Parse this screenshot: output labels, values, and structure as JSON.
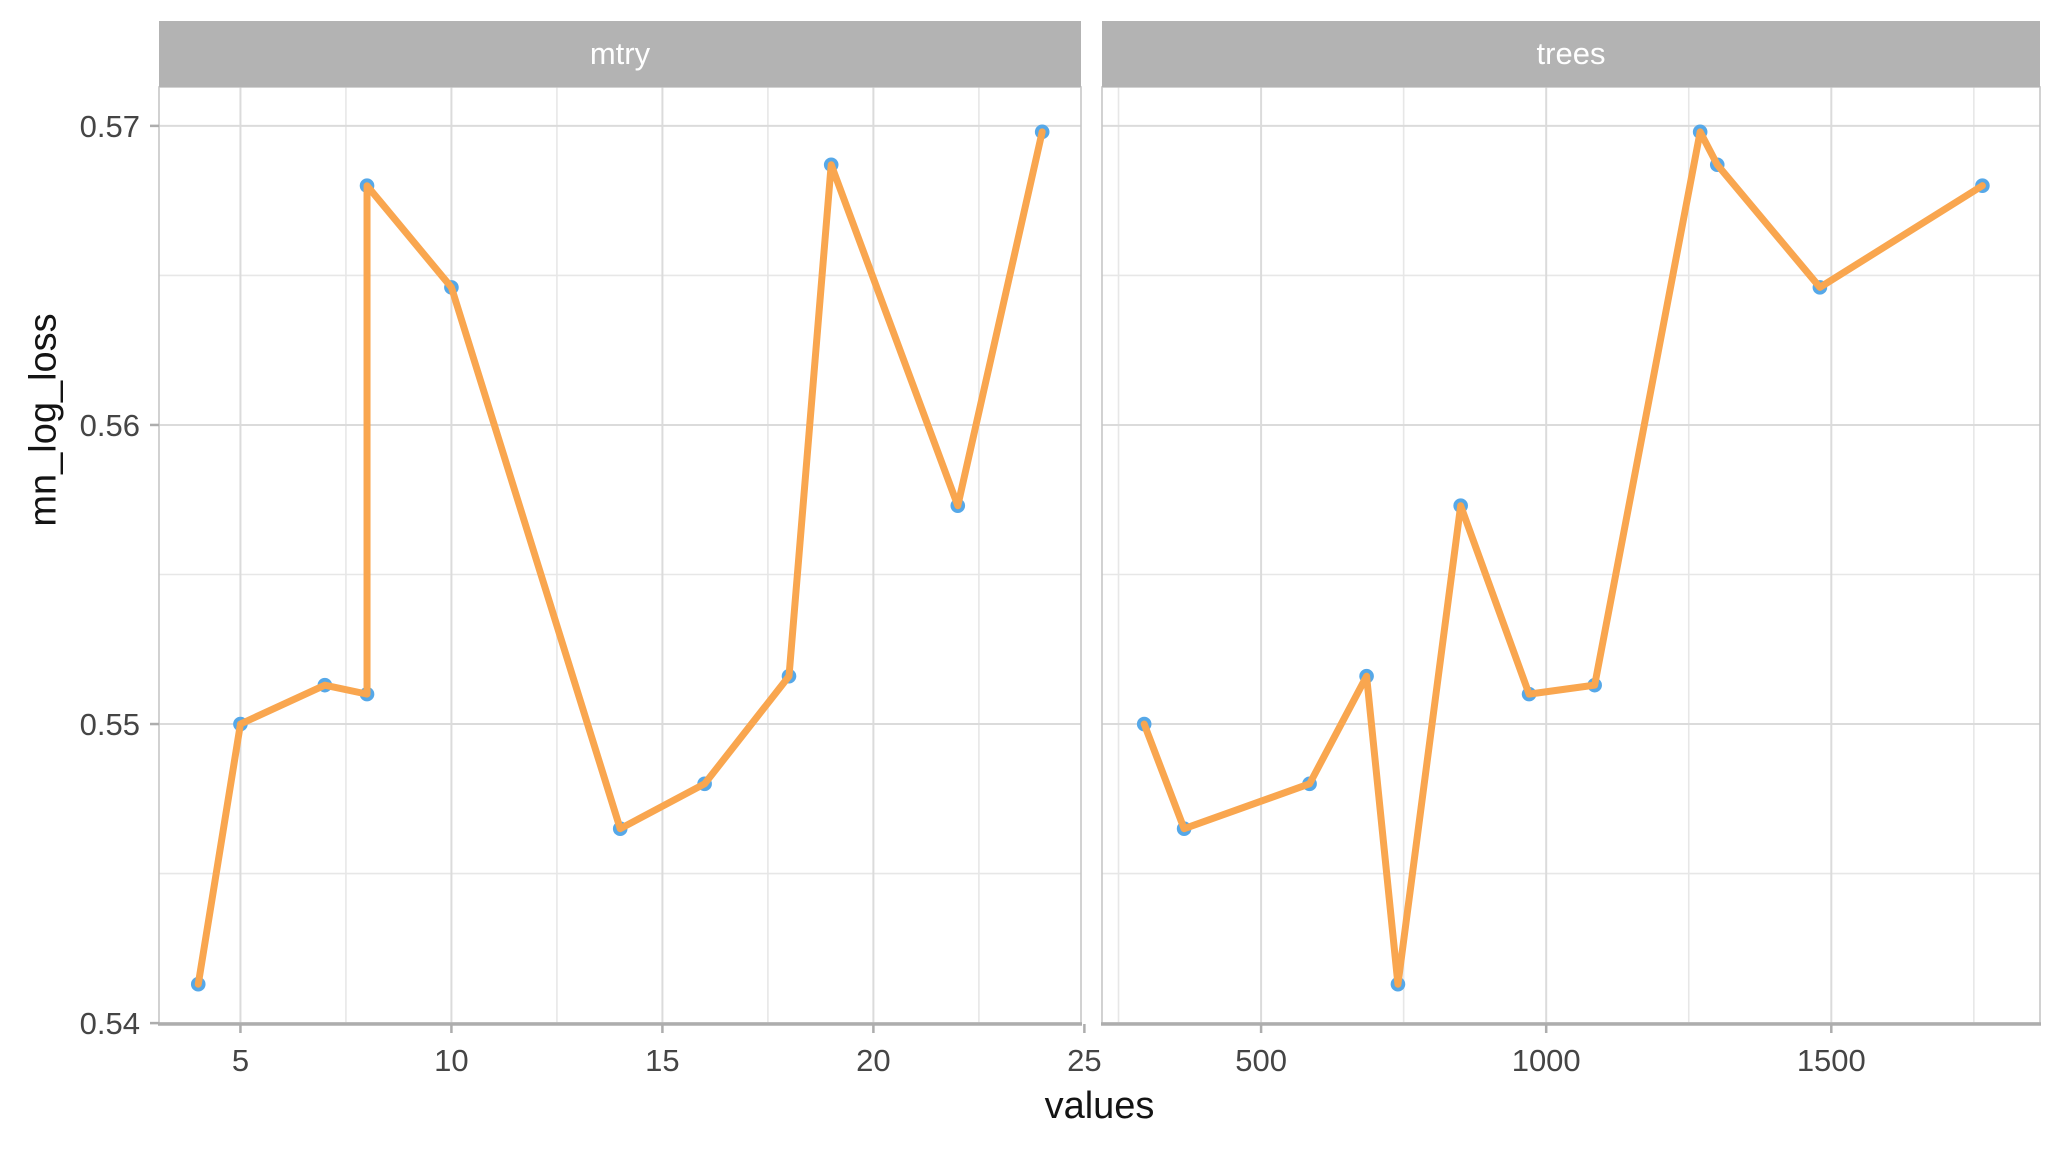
{
  "chart": {
    "xlabel": "values",
    "ylabel": "mn_log_loss"
  },
  "chart_data": {
    "type": "line",
    "description": "Faceted line+point plot of mn_log_loss versus hyperparameter values for two tuning parameters (mtry, trees)",
    "xlabel": "values",
    "ylabel": "mn_log_loss",
    "legend": "none",
    "grid": true,
    "y_domain": [
      0.53997,
      0.5713
    ],
    "y_major_ticks": [
      {
        "v": 0.54,
        "label": "0.54"
      },
      {
        "v": 0.55,
        "label": "0.55"
      },
      {
        "v": 0.56,
        "label": "0.56"
      },
      {
        "v": 0.57,
        "label": "0.57"
      }
    ],
    "y_minor": [
      0.545,
      0.555,
      0.565
    ],
    "facets": [
      {
        "label": "mtry",
        "x_domain": [
          3.07,
          24.92
        ],
        "x_major_ticks": [
          {
            "v": 5,
            "label": "5"
          },
          {
            "v": 10,
            "label": "10"
          },
          {
            "v": 15,
            "label": "15"
          },
          {
            "v": 20,
            "label": "20"
          },
          {
            "v": 25,
            "label": "25"
          }
        ],
        "x_minor": [
          7.5,
          12.5,
          17.5,
          22.5
        ],
        "points": [
          [
            4,
            0.5413
          ],
          [
            5,
            0.55
          ],
          [
            7,
            0.5513
          ],
          [
            8,
            0.551
          ],
          [
            8,
            0.568
          ],
          [
            10,
            0.5646
          ],
          [
            14,
            0.5465
          ],
          [
            16,
            0.548
          ],
          [
            18,
            0.5516
          ],
          [
            19,
            0.5687
          ],
          [
            22,
            0.5573
          ],
          [
            24,
            0.5698
          ]
        ]
      },
      {
        "label": "trees",
        "x_domain": [
          221,
          1866
        ],
        "x_major_ticks": [
          {
            "v": 500,
            "label": "500"
          },
          {
            "v": 1000,
            "label": "1000"
          },
          {
            "v": 1500,
            "label": "1500"
          }
        ],
        "x_minor": [
          250,
          750,
          1250,
          1750
        ],
        "points": [
          [
            295,
            0.55
          ],
          [
            365,
            0.5465
          ],
          [
            585,
            0.548
          ],
          [
            685,
            0.5516
          ],
          [
            740,
            0.5413
          ],
          [
            850,
            0.5573
          ],
          [
            970,
            0.551
          ],
          [
            1085,
            0.5513
          ],
          [
            1270,
            0.5698
          ],
          [
            1300,
            0.5687
          ],
          [
            1480,
            0.5646
          ],
          [
            1765,
            0.568
          ]
        ]
      }
    ],
    "style": {
      "line_color": "#F9A64F",
      "point_color": "#56A8E8",
      "strip_bg": "#B3B3B3",
      "strip_text": "#FFFFFF",
      "grid_major": "#DBDBDB",
      "grid_minor": "#E7E7E7",
      "panel_border": "#C6C6C6",
      "axis_line": "#ADADAD",
      "tick_color": "#ADADAD",
      "tick_label_color": "#454545",
      "title_color": "#141414"
    }
  }
}
